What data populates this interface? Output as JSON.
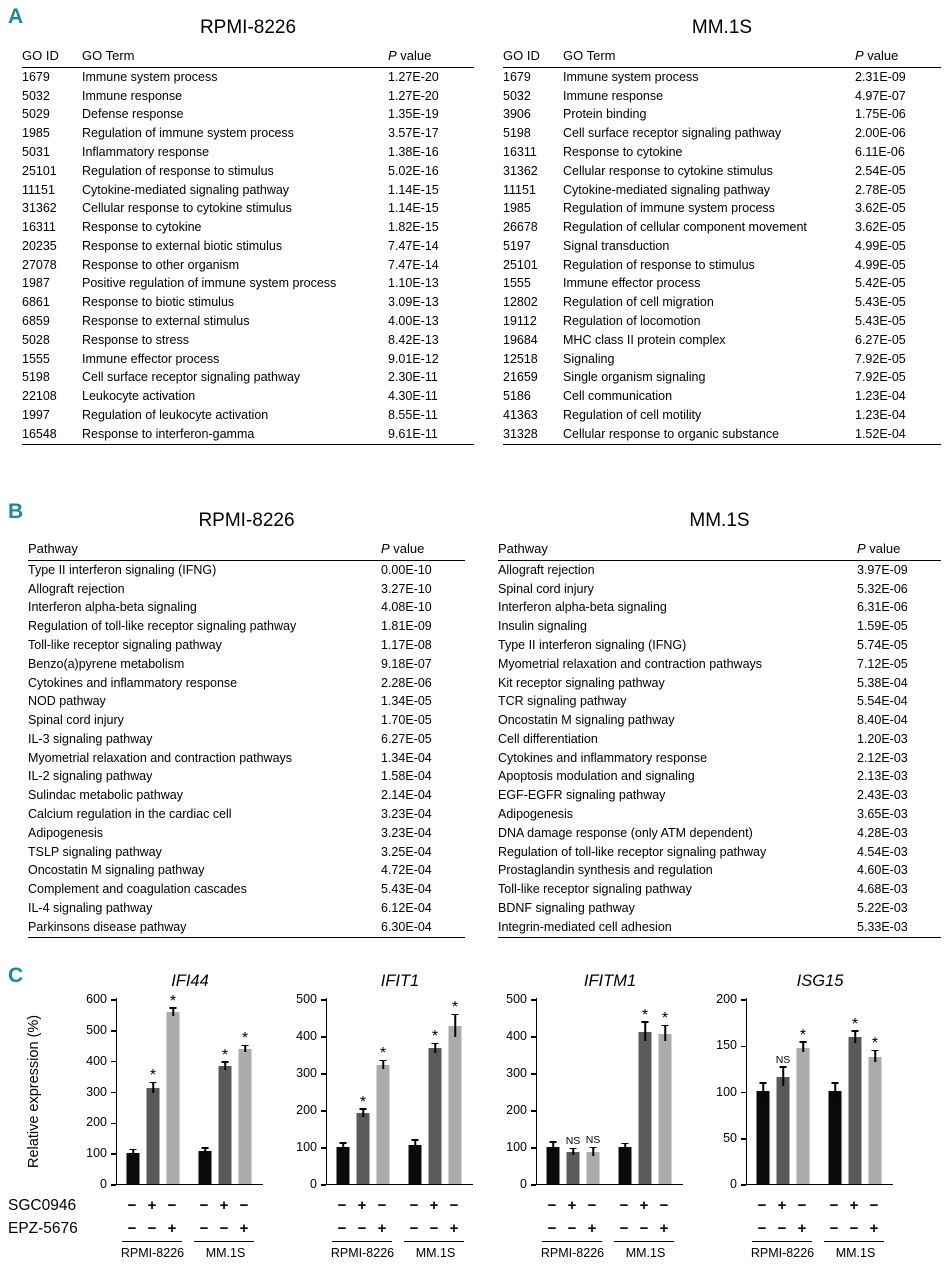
{
  "accent_color": "#1f8a94",
  "panels": {
    "A": {
      "label": "A",
      "tables": [
        {
          "title": "RPMI-8226",
          "columns": [
            "GO ID",
            "GO Term",
            "P value"
          ],
          "rows": [
            [
              "1679",
              "Immune system process",
              "1.27E-20"
            ],
            [
              "5032",
              "Immune response",
              "1.27E-20"
            ],
            [
              "5029",
              "Defense response",
              "1.35E-19"
            ],
            [
              "1985",
              "Regulation of immune system process",
              "3.57E-17"
            ],
            [
              "5031",
              "Inflammatory response",
              "1.38E-16"
            ],
            [
              "25101",
              "Regulation of response to stimulus",
              "5.02E-16"
            ],
            [
              "11151",
              "Cytokine-mediated signaling pathway",
              "1.14E-15"
            ],
            [
              "31362",
              "Cellular response to cytokine stimulus",
              "1.14E-15"
            ],
            [
              "16311",
              "Response to cytokine",
              "1.82E-15"
            ],
            [
              "20235",
              "Response to external biotic stimulus",
              "7.47E-14"
            ],
            [
              "27078",
              "Response to other organism",
              "7.47E-14"
            ],
            [
              "1987",
              "Positive regulation of immune system process",
              "1.10E-13"
            ],
            [
              "6861",
              "Response to biotic stimulus",
              "3.09E-13"
            ],
            [
              "6859",
              "Response to external stimulus",
              "4.00E-13"
            ],
            [
              "5028",
              "Response to stress",
              "8.42E-13"
            ],
            [
              "1555",
              "Immune effector process",
              "9.01E-12"
            ],
            [
              "5198",
              "Cell surface receptor signaling pathway",
              "2.30E-11"
            ],
            [
              "22108",
              "Leukocyte activation",
              "4.30E-11"
            ],
            [
              "1997",
              "Regulation of leukocyte activation",
              "8.55E-11"
            ],
            [
              "16548",
              "Response to interferon-gamma",
              "9.61E-11"
            ]
          ]
        },
        {
          "title": "MM.1S",
          "columns": [
            "GO ID",
            "GO Term",
            "P value"
          ],
          "rows": [
            [
              "1679",
              "Immune system process",
              "2.31E-09"
            ],
            [
              "5032",
              "Immune response",
              "4.97E-07"
            ],
            [
              "3906",
              "Protein binding",
              "1.75E-06"
            ],
            [
              "5198",
              "Cell surface receptor signaling pathway",
              "2.00E-06"
            ],
            [
              "16311",
              "Response to cytokine",
              "6.11E-06"
            ],
            [
              "31362",
              "Cellular response to cytokine stimulus",
              "2.54E-05"
            ],
            [
              "11151",
              "Cytokine-mediated signaling pathway",
              "2.78E-05"
            ],
            [
              "1985",
              "Regulation of immune system process",
              "3.62E-05"
            ],
            [
              "26678",
              "Regulation of cellular component movement",
              "3.62E-05"
            ],
            [
              "5197",
              "Signal transduction",
              "4.99E-05"
            ],
            [
              "25101",
              "Regulation of response to stimulus",
              "4.99E-05"
            ],
            [
              "1555",
              "Immune effector process",
              "5.42E-05"
            ],
            [
              "12802",
              "Regulation of cell migration",
              "5.43E-05"
            ],
            [
              "19112",
              "Regulation of locomotion",
              "5.43E-05"
            ],
            [
              "19684",
              "MHC class II protein complex",
              "6.27E-05"
            ],
            [
              "12518",
              "Signaling",
              "7.92E-05"
            ],
            [
              "21659",
              "Single organism signaling",
              "7.92E-05"
            ],
            [
              "5186",
              "Cell communication",
              "1.23E-04"
            ],
            [
              "41363",
              "Regulation of cell motility",
              "1.23E-04"
            ],
            [
              "31328",
              "Cellular response to organic substance",
              "1.52E-04"
            ]
          ]
        }
      ]
    },
    "B": {
      "label": "B",
      "tables": [
        {
          "title": "RPMI-8226",
          "columns": [
            "Pathway",
            "P value"
          ],
          "rows": [
            [
              "Type II interferon signaling (IFNG)",
              "0.00E-10"
            ],
            [
              "Allograft rejection",
              "3.27E-10"
            ],
            [
              "Interferon alpha-beta signaling",
              "4.08E-10"
            ],
            [
              "Regulation of toll-like receptor signaling pathway",
              "1.81E-09"
            ],
            [
              "Toll-like receptor signaling pathway",
              "1.17E-08"
            ],
            [
              "Benzo(a)pyrene metabolism",
              "9.18E-07"
            ],
            [
              "Cytokines and inflammatory response",
              "2.28E-06"
            ],
            [
              "NOD pathway",
              "1.34E-05"
            ],
            [
              "Spinal cord injury",
              "1.70E-05"
            ],
            [
              "IL-3 signaling pathway",
              "6.27E-05"
            ],
            [
              "Myometrial relaxation and contraction pathways",
              "1.34E-04"
            ],
            [
              "IL-2 signaling  pathway",
              "1.58E-04"
            ],
            [
              "Sulindac metabolic pathway",
              "2.14E-04"
            ],
            [
              "Calcium regulation in the cardiac cell",
              "3.23E-04"
            ],
            [
              "Adipogenesis",
              "3.23E-04"
            ],
            [
              "TSLP signaling pathway",
              "3.25E-04"
            ],
            [
              "Oncostatin M signaling pathway",
              "4.72E-04"
            ],
            [
              "Complement and coagulation cascades",
              "5.43E-04"
            ],
            [
              "IL-4 signaling pathway",
              "6.12E-04"
            ],
            [
              "Parkinsons disease pathway",
              "6.30E-04"
            ]
          ]
        },
        {
          "title": "MM.1S",
          "columns": [
            "Pathway",
            "P value"
          ],
          "rows": [
            [
              "Allograft rejection",
              "3.97E-09"
            ],
            [
              "Spinal cord injury",
              "5.32E-06"
            ],
            [
              "Interferon alpha-beta signaling",
              "6.31E-06"
            ],
            [
              "Insulin signaling",
              "1.59E-05"
            ],
            [
              "Type II interferon signaling (IFNG)",
              "5.74E-05"
            ],
            [
              "Myometrial relaxation and contraction pathways",
              "7.12E-05"
            ],
            [
              "Kit receptor signaling pathway",
              "5.38E-04"
            ],
            [
              "TCR signaling pathway",
              "5.54E-04"
            ],
            [
              "Oncostatin M signaling pathway",
              "8.40E-04"
            ],
            [
              "Cell differentiation",
              "1.20E-03"
            ],
            [
              "Cytokines and inflammatory response",
              "2.12E-03"
            ],
            [
              "Apoptosis modulation and signaling",
              "2.13E-03"
            ],
            [
              "EGF-EGFR signaling pathway",
              "2.43E-03"
            ],
            [
              "Adipogenesis",
              "3.65E-03"
            ],
            [
              "DNA damage response (only ATM dependent)",
              "4.28E-03"
            ],
            [
              "Regulation of toll-like receptor signaling pathway",
              "4.54E-03"
            ],
            [
              "Prostaglandin synthesis and regulation",
              "4.60E-03"
            ],
            [
              "Toll-like receptor signaling pathway",
              "4.68E-03"
            ],
            [
              "BDNF signaling pathway",
              "5.22E-03"
            ],
            [
              "Integrin-mediated cell adhesion",
              "5.33E-03"
            ]
          ]
        }
      ]
    },
    "C": {
      "label": "C",
      "ylabel": "Relative expression (%)",
      "row_labels": [
        "SGC0946",
        "EPZ-5676"
      ],
      "group_labels": [
        "RPMI-8226",
        "MM.1S"
      ]
    }
  },
  "chart_data": [
    {
      "type": "bar",
      "title": "IFI44",
      "ylabel": "Relative expression (%)",
      "ylim": [
        0,
        600
      ],
      "yticks": [
        0,
        100,
        200,
        300,
        400,
        500,
        600
      ],
      "groups": [
        "RPMI-8226",
        "MM.1S"
      ],
      "condition_rows": [
        {
          "label": "SGC0946",
          "signs": [
            "−",
            "+",
            "−",
            "−",
            "+",
            "−"
          ]
        },
        {
          "label": "EPZ-5676",
          "signs": [
            "−",
            "−",
            "+",
            "−",
            "−",
            "+"
          ]
        }
      ],
      "values": [
        100,
        310,
        555,
        105,
        380,
        435
      ],
      "errors": [
        8,
        15,
        12,
        8,
        12,
        10
      ],
      "sig": [
        "",
        "*",
        "*",
        "",
        "*",
        "*"
      ],
      "bar_colors": [
        "#0a0a0a",
        "#5a5a5a",
        "#ababab"
      ]
    },
    {
      "type": "bar",
      "title": "IFIT1",
      "ylim": [
        0,
        500
      ],
      "yticks": [
        0,
        100,
        200,
        300,
        400,
        500
      ],
      "groups": [
        "RPMI-8226",
        "MM.1S"
      ],
      "condition_rows": [
        {
          "label": "SGC0946",
          "signs": [
            "−",
            "+",
            "−",
            "−",
            "+",
            "−"
          ]
        },
        {
          "label": "EPZ-5676",
          "signs": [
            "−",
            "−",
            "+",
            "−",
            "−",
            "+"
          ]
        }
      ],
      "values": [
        100,
        190,
        320,
        105,
        365,
        425
      ],
      "errors": [
        8,
        10,
        10,
        10,
        12,
        30
      ],
      "sig": [
        "",
        "*",
        "*",
        "",
        "*",
        "*"
      ],
      "bar_colors": [
        "#0a0a0a",
        "#5a5a5a",
        "#ababab"
      ]
    },
    {
      "type": "bar",
      "title": "IFITM1",
      "ylim": [
        0,
        500
      ],
      "yticks": [
        0,
        100,
        200,
        300,
        400,
        500
      ],
      "groups": [
        "RPMI-8226",
        "MM.1S"
      ],
      "condition_rows": [
        {
          "label": "SGC0946",
          "signs": [
            "−",
            "+",
            "−",
            "−",
            "+",
            "−"
          ]
        },
        {
          "label": "EPZ-5676",
          "signs": [
            "−",
            "−",
            "+",
            "−",
            "−",
            "+"
          ]
        }
      ],
      "values": [
        100,
        85,
        85,
        100,
        410,
        405
      ],
      "errors": [
        10,
        8,
        10,
        6,
        25,
        20
      ],
      "sig": [
        "",
        "NS",
        "NS",
        "",
        "*",
        "*"
      ],
      "bar_colors": [
        "#0a0a0a",
        "#5a5a5a",
        "#ababab"
      ]
    },
    {
      "type": "bar",
      "title": "ISG15",
      "ylim": [
        0,
        200
      ],
      "yticks": [
        0,
        50,
        100,
        150,
        200
      ],
      "groups": [
        "RPMI-8226",
        "MM.1S"
      ],
      "condition_rows": [
        {
          "label": "SGC0946",
          "signs": [
            "−",
            "+",
            "−",
            "−",
            "+",
            "−"
          ]
        },
        {
          "label": "EPZ-5676",
          "signs": [
            "−",
            "−",
            "+",
            "−",
            "−",
            "+"
          ]
        }
      ],
      "values": [
        100,
        115,
        147,
        100,
        158,
        137
      ],
      "errors": [
        8,
        10,
        5,
        8,
        6,
        6
      ],
      "sig": [
        "",
        "NS",
        "*",
        "",
        "*",
        "*"
      ],
      "bar_colors": [
        "#0a0a0a",
        "#5a5a5a",
        "#ababab"
      ]
    }
  ]
}
